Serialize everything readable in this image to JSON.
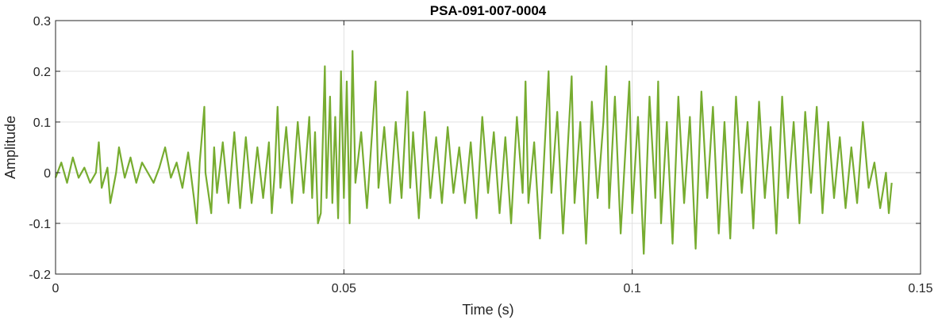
{
  "chart_data": {
    "type": "line",
    "title": "PSA-091-007-0004",
    "xlabel": "Time (s)",
    "ylabel": "Amplitude",
    "xlim": [
      0,
      0.15
    ],
    "ylim": [
      -0.2,
      0.3
    ],
    "xticks": [
      0,
      0.05,
      0.1,
      0.15
    ],
    "xtick_labels": [
      "0",
      "0.05",
      "0.1",
      "0.15"
    ],
    "yticks": [
      -0.2,
      -0.1,
      0,
      0.1,
      0.2,
      0.3
    ],
    "ytick_labels": [
      "-0.2",
      "-0.1",
      "0",
      "0.1",
      "0.2",
      "0.3"
    ],
    "grid": true,
    "series": [
      {
        "color": "#77ac30",
        "points": [
          [
            0.0,
            -0.01
          ],
          [
            0.001,
            0.02
          ],
          [
            0.002,
            -0.02
          ],
          [
            0.003,
            0.03
          ],
          [
            0.004,
            -0.01
          ],
          [
            0.005,
            0.01
          ],
          [
            0.006,
            -0.02
          ],
          [
            0.007,
            0.0
          ],
          [
            0.0075,
            0.06
          ],
          [
            0.008,
            -0.03
          ],
          [
            0.009,
            0.01
          ],
          [
            0.0095,
            -0.06
          ],
          [
            0.0105,
            0.0
          ],
          [
            0.011,
            0.05
          ],
          [
            0.012,
            -0.01
          ],
          [
            0.013,
            0.03
          ],
          [
            0.014,
            -0.02
          ],
          [
            0.015,
            0.02
          ],
          [
            0.016,
            0.0
          ],
          [
            0.017,
            -0.02
          ],
          [
            0.018,
            0.01
          ],
          [
            0.019,
            0.05
          ],
          [
            0.02,
            -0.01
          ],
          [
            0.021,
            0.02
          ],
          [
            0.022,
            -0.03
          ],
          [
            0.023,
            0.04
          ],
          [
            0.024,
            -0.05
          ],
          [
            0.0245,
            -0.1
          ],
          [
            0.025,
            0.02
          ],
          [
            0.0258,
            0.13
          ],
          [
            0.026,
            0.0
          ],
          [
            0.027,
            -0.08
          ],
          [
            0.0275,
            0.05
          ],
          [
            0.028,
            -0.04
          ],
          [
            0.029,
            0.06
          ],
          [
            0.03,
            -0.06
          ],
          [
            0.031,
            0.08
          ],
          [
            0.032,
            -0.07
          ],
          [
            0.033,
            0.07
          ],
          [
            0.034,
            -0.06
          ],
          [
            0.035,
            0.05
          ],
          [
            0.036,
            -0.05
          ],
          [
            0.037,
            0.06
          ],
          [
            0.0375,
            -0.08
          ],
          [
            0.038,
            0.0
          ],
          [
            0.0385,
            0.13
          ],
          [
            0.039,
            -0.03
          ],
          [
            0.04,
            0.09
          ],
          [
            0.041,
            -0.06
          ],
          [
            0.042,
            0.1
          ],
          [
            0.043,
            -0.04
          ],
          [
            0.044,
            0.11
          ],
          [
            0.0445,
            -0.05
          ],
          [
            0.045,
            0.08
          ],
          [
            0.0455,
            -0.1
          ],
          [
            0.046,
            -0.08
          ],
          [
            0.0467,
            0.21
          ],
          [
            0.047,
            -0.05
          ],
          [
            0.0476,
            0.15
          ],
          [
            0.048,
            -0.06
          ],
          [
            0.0485,
            0.11
          ],
          [
            0.049,
            -0.09
          ],
          [
            0.0495,
            0.2
          ],
          [
            0.05,
            -0.05
          ],
          [
            0.0505,
            0.18
          ],
          [
            0.051,
            -0.1
          ],
          [
            0.0515,
            0.24
          ],
          [
            0.052,
            -0.02
          ],
          [
            0.053,
            0.08
          ],
          [
            0.054,
            -0.07
          ],
          [
            0.0555,
            0.18
          ],
          [
            0.056,
            -0.03
          ],
          [
            0.057,
            0.09
          ],
          [
            0.058,
            -0.06
          ],
          [
            0.059,
            0.1
          ],
          [
            0.06,
            -0.05
          ],
          [
            0.061,
            0.16
          ],
          [
            0.0615,
            -0.03
          ],
          [
            0.062,
            0.08
          ],
          [
            0.063,
            -0.09
          ],
          [
            0.064,
            0.12
          ],
          [
            0.065,
            -0.05
          ],
          [
            0.066,
            0.07
          ],
          [
            0.067,
            -0.06
          ],
          [
            0.068,
            0.09
          ],
          [
            0.069,
            -0.04
          ],
          [
            0.07,
            0.05
          ],
          [
            0.071,
            -0.06
          ],
          [
            0.072,
            0.06
          ],
          [
            0.073,
            -0.09
          ],
          [
            0.074,
            0.11
          ],
          [
            0.075,
            -0.04
          ],
          [
            0.076,
            0.08
          ],
          [
            0.077,
            -0.08
          ],
          [
            0.078,
            0.07
          ],
          [
            0.079,
            -0.1
          ],
          [
            0.08,
            0.11
          ],
          [
            0.081,
            -0.04
          ],
          [
            0.0815,
            0.18
          ],
          [
            0.082,
            -0.06
          ],
          [
            0.083,
            0.06
          ],
          [
            0.084,
            -0.13
          ],
          [
            0.085,
            0.09
          ],
          [
            0.0855,
            0.2
          ],
          [
            0.086,
            -0.04
          ],
          [
            0.087,
            0.12
          ],
          [
            0.088,
            -0.12
          ],
          [
            0.0895,
            0.19
          ],
          [
            0.09,
            -0.06
          ],
          [
            0.091,
            0.1
          ],
          [
            0.092,
            -0.14
          ],
          [
            0.093,
            0.14
          ],
          [
            0.094,
            -0.05
          ],
          [
            0.095,
            0.1
          ],
          [
            0.0955,
            0.21
          ],
          [
            0.096,
            -0.07
          ],
          [
            0.097,
            0.15
          ],
          [
            0.098,
            -0.12
          ],
          [
            0.0995,
            0.18
          ],
          [
            0.1,
            -0.08
          ],
          [
            0.101,
            0.11
          ],
          [
            0.102,
            -0.16
          ],
          [
            0.103,
            0.15
          ],
          [
            0.104,
            -0.05
          ],
          [
            0.1045,
            0.18
          ],
          [
            0.105,
            -0.1
          ],
          [
            0.106,
            0.1
          ],
          [
            0.107,
            -0.14
          ],
          [
            0.108,
            0.15
          ],
          [
            0.109,
            -0.06
          ],
          [
            0.11,
            0.11
          ],
          [
            0.111,
            -0.15
          ],
          [
            0.112,
            0.16
          ],
          [
            0.113,
            -0.05
          ],
          [
            0.114,
            0.13
          ],
          [
            0.115,
            -0.12
          ],
          [
            0.116,
            0.1
          ],
          [
            0.117,
            -0.13
          ],
          [
            0.118,
            0.15
          ],
          [
            0.119,
            -0.04
          ],
          [
            0.12,
            0.1
          ],
          [
            0.121,
            -0.11
          ],
          [
            0.122,
            0.14
          ],
          [
            0.123,
            -0.05
          ],
          [
            0.124,
            0.09
          ],
          [
            0.125,
            -0.12
          ],
          [
            0.126,
            0.15
          ],
          [
            0.127,
            -0.05
          ],
          [
            0.128,
            0.1
          ],
          [
            0.129,
            -0.1
          ],
          [
            0.13,
            0.12
          ],
          [
            0.131,
            -0.04
          ],
          [
            0.132,
            0.13
          ],
          [
            0.133,
            -0.08
          ],
          [
            0.134,
            0.1
          ],
          [
            0.135,
            -0.05
          ],
          [
            0.136,
            0.07
          ],
          [
            0.137,
            -0.07
          ],
          [
            0.138,
            0.05
          ],
          [
            0.139,
            -0.06
          ],
          [
            0.14,
            0.1
          ],
          [
            0.141,
            -0.03
          ],
          [
            0.142,
            0.02
          ],
          [
            0.143,
            -0.07
          ],
          [
            0.144,
            0.0
          ],
          [
            0.1445,
            -0.08
          ],
          [
            0.145,
            -0.02
          ]
        ]
      }
    ]
  }
}
